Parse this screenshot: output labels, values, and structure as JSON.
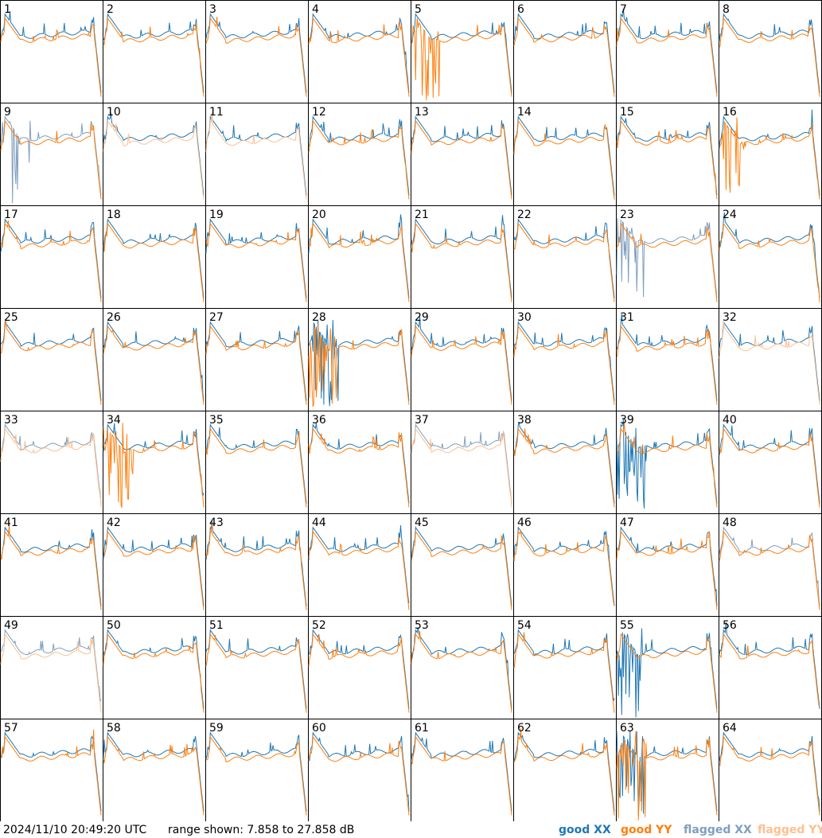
{
  "chart_data": {
    "type": "line",
    "panels": 64,
    "panel_labels": [
      "1",
      "2",
      "3",
      "4",
      "5",
      "6",
      "7",
      "8",
      "9",
      "10",
      "11",
      "12",
      "13",
      "14",
      "15",
      "16",
      "17",
      "18",
      "19",
      "20",
      "21",
      "22",
      "23",
      "24",
      "25",
      "26",
      "27",
      "28",
      "29",
      "30",
      "31",
      "32",
      "33",
      "34",
      "35",
      "36",
      "37",
      "38",
      "39",
      "40",
      "41",
      "42",
      "43",
      "44",
      "45",
      "46",
      "47",
      "48",
      "49",
      "50",
      "51",
      "52",
      "53",
      "54",
      "55",
      "56",
      "57",
      "58",
      "59",
      "60",
      "61",
      "62",
      "63",
      "64"
    ],
    "y_range_db": [
      7.858,
      27.858
    ],
    "grid": false,
    "legend_position": "bottom-right",
    "series": [
      {
        "name": "good XX",
        "color": "#1f77b4"
      },
      {
        "name": "good YY",
        "color": "#ff7f0e"
      },
      {
        "name": "flagged XX",
        "color": "#7f9fbf"
      },
      {
        "name": "flagged YY",
        "color": "#ffbf8f"
      }
    ],
    "flags": {
      "xx_flagged": [
        9,
        23,
        33,
        37,
        48,
        49
      ],
      "yy_flagged": [
        10,
        11,
        32,
        33,
        37,
        49
      ],
      "dead": {
        "5": "yy",
        "9": "xx",
        "16": "yy",
        "23": "xx",
        "28": "both",
        "34": "yy",
        "39": "xx",
        "55": "xx",
        "63": "both"
      }
    }
  },
  "footer": {
    "timestamp": "2024/11/10 20:49:20 UTC",
    "range_text": "range shown: 7.858 to 27.858 dB",
    "legend": {
      "good_xx": "good XX",
      "good_yy": "good YY",
      "flagged_xx": "flagged XX",
      "flagged_yy": "flagged YY"
    }
  }
}
